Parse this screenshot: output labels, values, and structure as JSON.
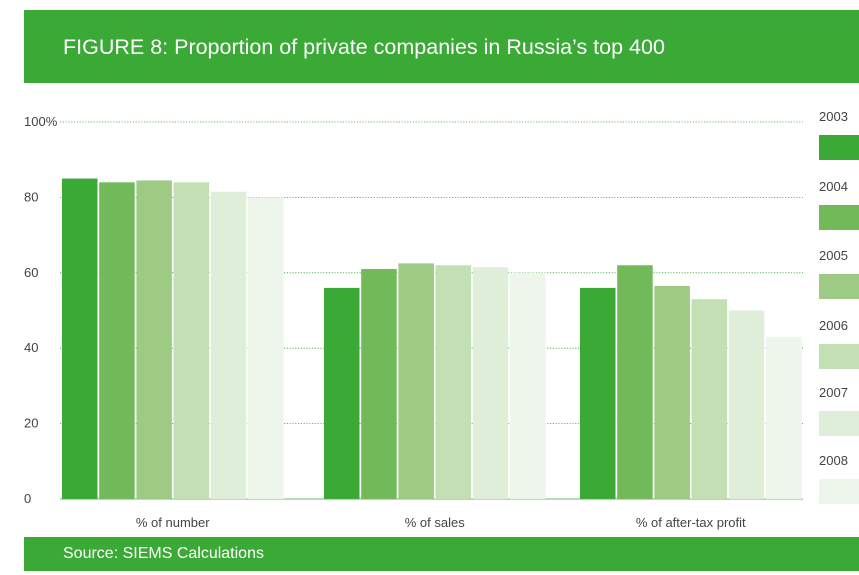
{
  "title": "FIGURE 8: Proportion of private companies in Russia’s top 400",
  "source": "Source: SIEMS Calculations",
  "chart_data": {
    "type": "bar",
    "title": "FIGURE 8: Proportion of private companies in Russia’s top 400",
    "xlabel": "",
    "ylabel": "",
    "ylim": [
      0,
      100
    ],
    "yticks": [
      0,
      20,
      40,
      60,
      80,
      100
    ],
    "ytick_labels": [
      "0",
      "20",
      "40",
      "60",
      "80",
      "100%"
    ],
    "grid": "horizontal dotted",
    "legend_position": "right",
    "categories": [
      "% of number",
      "% of sales",
      "% of after-tax profit"
    ],
    "series": [
      {
        "name": "2003",
        "color": "#3aa935",
        "values": [
          85,
          56,
          56
        ]
      },
      {
        "name": "2004",
        "color": "#72b95a",
        "values": [
          84,
          61,
          62
        ]
      },
      {
        "name": "2005",
        "color": "#9dcb84",
        "values": [
          84.5,
          62.5,
          56.5
        ]
      },
      {
        "name": "2006",
        "color": "#c3e0b4",
        "values": [
          84,
          62,
          53
        ]
      },
      {
        "name": "2007",
        "color": "#dfeed9",
        "values": [
          81.5,
          61.5,
          50
        ]
      },
      {
        "name": "2008",
        "color": "#eef6ec",
        "values": [
          80,
          60,
          43
        ]
      }
    ]
  }
}
